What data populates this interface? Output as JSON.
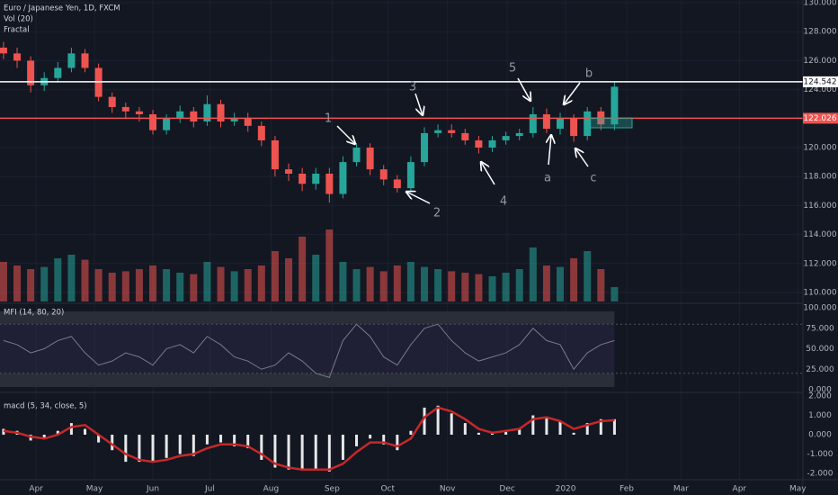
{
  "chart_data": [
    {
      "type": "candlestick",
      "title": "Euro / Japanese Yen, 1D, FXCM",
      "labels": [
        "Vol (20)",
        "Fractal"
      ],
      "open": [
        126.9,
        126.5,
        126.0,
        124.3,
        124.8,
        125.5,
        126.5,
        125.5,
        123.5,
        122.8,
        122.5,
        122.3,
        121.2,
        122.0,
        122.5,
        121.8,
        123.0,
        121.8,
        122.0,
        121.5,
        120.5,
        118.5,
        118.2,
        117.5,
        118.2,
        116.8,
        119.0,
        120.0,
        118.5,
        117.8,
        117.2,
        119.0,
        121.0,
        121.2,
        121.0,
        120.5,
        120.0,
        120.5,
        120.8,
        121.0,
        122.3,
        121.3,
        122.0,
        120.8,
        122.5,
        121.6
      ],
      "high": [
        127.3,
        126.9,
        126.3,
        125.2,
        125.9,
        126.9,
        126.8,
        125.8,
        123.8,
        123.1,
        122.8,
        122.6,
        122.3,
        122.9,
        122.8,
        123.6,
        123.3,
        122.4,
        122.4,
        121.8,
        120.8,
        118.9,
        118.6,
        118.6,
        118.6,
        119.4,
        120.3,
        120.3,
        118.8,
        118.1,
        119.4,
        121.4,
        121.6,
        121.6,
        121.3,
        120.8,
        120.8,
        121.1,
        121.3,
        122.8,
        122.7,
        122.4,
        122.3,
        122.8,
        122.8,
        124.5
      ],
      "low": [
        126.1,
        125.5,
        123.8,
        123.9,
        124.5,
        125.2,
        125.2,
        123.2,
        122.4,
        122.0,
        121.8,
        120.9,
        120.9,
        121.7,
        121.4,
        121.5,
        121.4,
        121.5,
        121.1,
        120.1,
        118.0,
        117.7,
        117.0,
        117.1,
        116.2,
        116.5,
        118.7,
        118.1,
        117.4,
        116.9,
        116.9,
        118.7,
        120.7,
        120.7,
        120.2,
        119.6,
        119.7,
        120.2,
        120.5,
        120.7,
        121.0,
        120.9,
        120.4,
        120.5,
        121.2,
        121.2
      ],
      "close": [
        126.5,
        126.0,
        124.3,
        124.8,
        125.5,
        126.5,
        125.5,
        123.5,
        122.8,
        122.5,
        122.3,
        121.2,
        122.0,
        122.5,
        121.8,
        123.0,
        121.8,
        122.0,
        121.5,
        120.5,
        118.5,
        118.2,
        117.5,
        118.2,
        116.8,
        119.0,
        120.0,
        118.5,
        117.8,
        117.2,
        119.0,
        121.0,
        121.2,
        121.0,
        120.5,
        120.0,
        120.5,
        120.8,
        121.0,
        122.3,
        121.3,
        122.0,
        120.8,
        122.5,
        121.6,
        124.2
      ],
      "colors": {
        "up": "#26a69a",
        "down": "#ef5350"
      },
      "ylim": [
        110,
        130
      ],
      "yticks": [
        {
          "value": 110,
          "label": "110.000"
        },
        {
          "value": 112,
          "label": "112.000"
        },
        {
          "value": 114,
          "label": "114.000"
        },
        {
          "value": 116,
          "label": "116.000"
        },
        {
          "value": 118,
          "label": "118.000"
        },
        {
          "value": 120,
          "label": "120.000"
        },
        {
          "value": 122,
          "label": "122.000"
        },
        {
          "value": 124,
          "label": "124.000"
        },
        {
          "value": 126,
          "label": "126.000"
        },
        {
          "value": 128,
          "label": "128.000"
        },
        {
          "value": 130,
          "label": "130.000"
        }
      ],
      "xlim": [
        -0.26,
        58.88
      ],
      "xticks": [
        {
          "value": 2.4,
          "label": "Apr"
        },
        {
          "value": 6.7,
          "label": "May"
        },
        {
          "value": 11,
          "label": "Jun"
        },
        {
          "value": 15.2,
          "label": "Jul"
        },
        {
          "value": 19.7,
          "label": "Aug"
        },
        {
          "value": 24.2,
          "label": "Sep"
        },
        {
          "value": 28.3,
          "label": "Oct"
        },
        {
          "value": 32.7,
          "label": "Nov"
        },
        {
          "value": 37.1,
          "label": "Dec"
        },
        {
          "value": 41.4,
          "label": "2020"
        },
        {
          "value": 45.9,
          "label": "Feb"
        },
        {
          "value": 49.9,
          "label": "Mar"
        },
        {
          "value": 54.2,
          "label": "Apr"
        },
        {
          "value": 58.5,
          "label": "May"
        }
      ],
      "levels": [
        {
          "value": 124.542,
          "color": "#ffffff"
        },
        {
          "value": 122.026,
          "color": "#ef5350"
        }
      ],
      "annotations": [
        "1",
        "2",
        "3",
        "4",
        "5",
        "a",
        "b",
        "c"
      ],
      "grid": true
    },
    {
      "type": "bar",
      "values": [
        55,
        50,
        45,
        48,
        60,
        65,
        58,
        45,
        40,
        42,
        45,
        50,
        45,
        40,
        38,
        55,
        48,
        42,
        45,
        50,
        70,
        60,
        90,
        65,
        100,
        55,
        45,
        48,
        42,
        50,
        55,
        48,
        45,
        42,
        40,
        38,
        35,
        40,
        45,
        75,
        50,
        48,
        60,
        70,
        45,
        20
      ],
      "ylim": [
        0,
        100
      ]
    },
    {
      "type": "line",
      "title": "MFI (14, 80, 20)",
      "color": "#787b86",
      "values": [
        60,
        55,
        45,
        50,
        60,
        65,
        45,
        30,
        35,
        45,
        40,
        30,
        50,
        55,
        45,
        65,
        55,
        40,
        35,
        25,
        30,
        45,
        35,
        20,
        15,
        60,
        80,
        65,
        40,
        30,
        55,
        75,
        80,
        60,
        45,
        35,
        40,
        45,
        55,
        75,
        60,
        55,
        25,
        45,
        55,
        60
      ],
      "bands": [
        80,
        20
      ],
      "ylim": [
        0,
        100
      ],
      "yticks": [
        {
          "value": 0,
          "label": "0.000"
        },
        {
          "value": 25,
          "label": "25.000"
        },
        {
          "value": 50,
          "label": "50.000"
        },
        {
          "value": 75,
          "label": "75.000"
        },
        {
          "value": 100,
          "label": "100.000"
        }
      ]
    },
    {
      "type": "bar",
      "title": "macd (5, 34, close, 5)",
      "color": "#ffffff",
      "values": [
        0.3,
        0.2,
        -0.3,
        -0.2,
        0.2,
        0.6,
        0.3,
        -0.4,
        -0.8,
        -1.4,
        -1.4,
        -1.4,
        -1.2,
        -1.0,
        -1.1,
        -0.5,
        -0.4,
        -0.6,
        -0.7,
        -1.3,
        -1.7,
        -1.8,
        -1.8,
        -1.8,
        -1.9,
        -1.3,
        -0.6,
        -0.2,
        -0.5,
        -0.8,
        0.2,
        1.4,
        1.5,
        1.1,
        0.6,
        0.1,
        0.1,
        0.2,
        0.3,
        1.0,
        0.9,
        0.7,
        0.1,
        0.6,
        0.8,
        0.8
      ],
      "line": {
        "color": "#c62828",
        "values": [
          0.2,
          0.1,
          -0.1,
          -0.2,
          0.0,
          0.4,
          0.5,
          0.0,
          -0.5,
          -1.0,
          -1.3,
          -1.4,
          -1.3,
          -1.1,
          -1.0,
          -0.7,
          -0.5,
          -0.5,
          -0.6,
          -1.0,
          -1.5,
          -1.7,
          -1.8,
          -1.8,
          -1.8,
          -1.5,
          -0.9,
          -0.4,
          -0.4,
          -0.6,
          -0.2,
          0.9,
          1.4,
          1.2,
          0.8,
          0.3,
          0.1,
          0.2,
          0.3,
          0.8,
          0.9,
          0.7,
          0.3,
          0.5,
          0.7,
          0.75
        ]
      },
      "ylim": [
        -2,
        2
      ],
      "yticks": [
        {
          "value": -2,
          "label": "-2.000"
        },
        {
          "value": -1,
          "label": "-1.000"
        },
        {
          "value": 0,
          "label": "0.000"
        },
        {
          "value": 1,
          "label": "1.000"
        },
        {
          "value": 2,
          "label": "2.000"
        }
      ]
    }
  ]
}
